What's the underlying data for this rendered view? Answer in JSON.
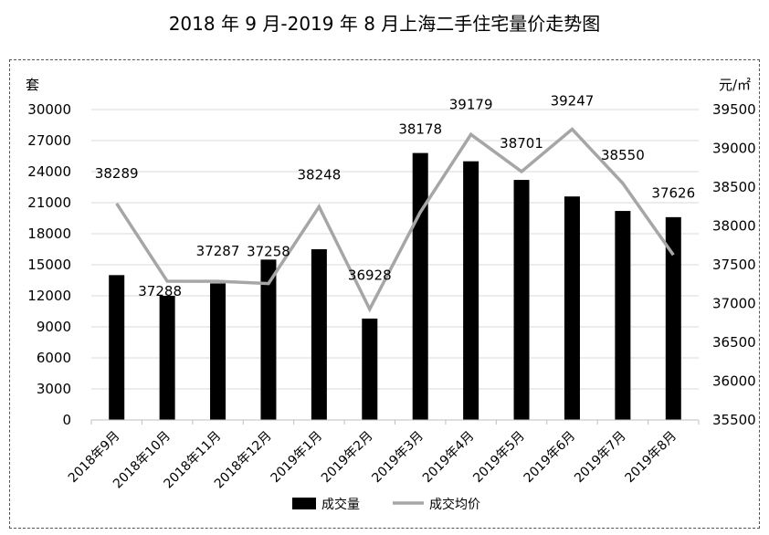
{
  "chart_data": {
    "type": "bar",
    "title": "2018 年 9 月-2019 年 8 月上海二手住宅量价走势图",
    "y_left_unit": "套",
    "y_right_unit": "元/㎡",
    "categories": [
      "2018年9月",
      "2018年10月",
      "2018年11月",
      "2018年12月",
      "2019年1月",
      "2019年2月",
      "2019年3月",
      "2019年4月",
      "2019年5月",
      "2019年6月",
      "2019年7月",
      "2019年8月"
    ],
    "ylim_left": [
      0,
      30000
    ],
    "yticks_left": [
      0,
      3000,
      6000,
      9000,
      12000,
      15000,
      18000,
      21000,
      24000,
      27000,
      30000
    ],
    "ylim_right": [
      35500,
      39500
    ],
    "yticks_right": [
      35500,
      36000,
      36500,
      37000,
      37500,
      38000,
      38500,
      39000,
      39500
    ],
    "series": [
      {
        "name": "成交量",
        "kind": "bar",
        "axis": "left",
        "color": "#000000",
        "values": [
          14000,
          12000,
          13200,
          15500,
          16500,
          9800,
          25800,
          25000,
          23200,
          21600,
          20200,
          19600
        ]
      },
      {
        "name": "成交均价",
        "kind": "line",
        "axis": "right",
        "color": "#a6a6a6",
        "values": [
          38289,
          37288,
          37287,
          37258,
          38248,
          36928,
          38178,
          39179,
          38701,
          39247,
          38550,
          37626
        ],
        "labels": [
          "38289",
          "37288",
          "37287",
          "37258",
          "38248",
          "36928",
          "38178",
          "39179",
          "38701",
          "39247",
          "38550",
          "37626"
        ]
      }
    ],
    "grid": true,
    "legend_position": "bottom"
  }
}
